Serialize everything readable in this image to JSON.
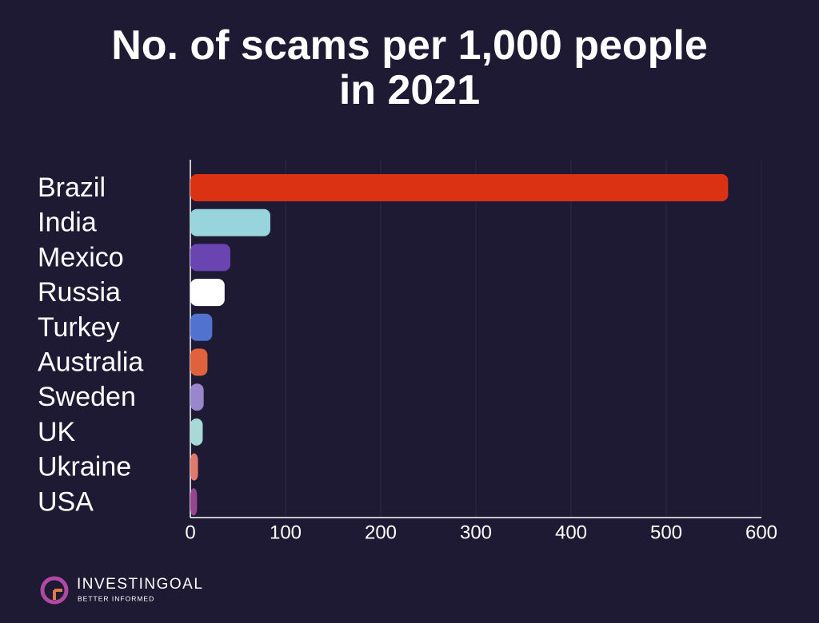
{
  "chart_data": {
    "type": "barh",
    "title": "No. of scams per 1,000 people in 2021",
    "categories": [
      "Brazil",
      "India",
      "Mexico",
      "Russia",
      "Turkey",
      "Australia",
      "Sweden",
      "UK",
      "Ukraine",
      "USA"
    ],
    "values": [
      565,
      84,
      42,
      36,
      23,
      18,
      14,
      13,
      8,
      7
    ],
    "colors": [
      "#dc3214",
      "#97d4dc",
      "#6a44b0",
      "#ffffff",
      "#5272d0",
      "#e0623c",
      "#9a86cc",
      "#a8d8d8",
      "#e07a6c",
      "#96468e"
    ],
    "xlim": [
      0,
      600
    ],
    "xticks": [
      0,
      100,
      200,
      300,
      400,
      500,
      600
    ],
    "grid": true
  },
  "logo": {
    "name": "INVESTINGOAL",
    "tagline": "BETTER INFORMED"
  }
}
